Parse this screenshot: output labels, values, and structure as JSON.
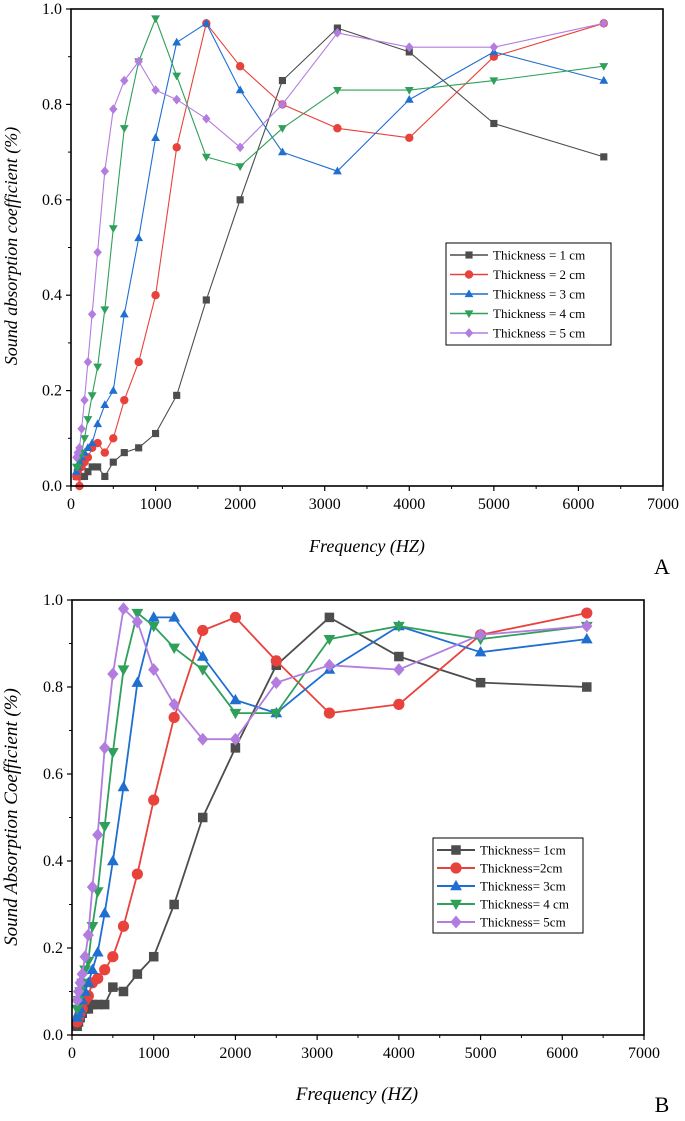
{
  "chart_data": [
    {
      "type": "line",
      "panel_label": "A",
      "xlabel": "Frequency (HZ)",
      "ylabel": "Sound absorption coefficient (%)",
      "xlim": [
        0,
        7000
      ],
      "ylim": [
        0,
        1.0
      ],
      "x_ticks": [
        "0",
        "1000",
        "2000",
        "3000",
        "4000",
        "5000",
        "6000",
        "7000"
      ],
      "y_ticks": [
        "0.0",
        "0.2",
        "0.4",
        "0.6",
        "0.8",
        "1.0"
      ],
      "legend_position": "center-right",
      "x": [
        63,
        80,
        100,
        125,
        160,
        200,
        250,
        315,
        400,
        500,
        630,
        800,
        1000,
        1250,
        1600,
        2000,
        2500,
        3150,
        4000,
        5000,
        6300
      ],
      "series": [
        {
          "name": "Thickness = 1 cm",
          "color": "#4d4d4d",
          "marker": "square",
          "values": [
            0.02,
            0.02,
            0.02,
            0.02,
            0.02,
            0.03,
            0.04,
            0.04,
            0.02,
            0.05,
            0.07,
            0.08,
            0.11,
            0.19,
            0.39,
            0.6,
            0.85,
            0.96,
            0.91,
            0.76,
            0.69
          ]
        },
        {
          "name": "Thickness = 2 cm",
          "color": "#e8423c",
          "marker": "circle",
          "values": [
            0.02,
            0.03,
            0.0,
            0.04,
            0.05,
            0.06,
            0.08,
            0.09,
            0.07,
            0.1,
            0.18,
            0.26,
            0.4,
            0.71,
            0.97,
            0.88,
            0.8,
            0.75,
            0.73,
            0.9,
            0.97
          ]
        },
        {
          "name": "Thickness = 3 cm",
          "color": "#1f6fd1",
          "marker": "triangle-up",
          "values": [
            0.03,
            0.04,
            0.05,
            0.06,
            0.07,
            0.08,
            0.09,
            0.13,
            0.17,
            0.2,
            0.36,
            0.52,
            0.73,
            0.93,
            0.97,
            0.83,
            0.7,
            0.66,
            0.81,
            0.91,
            0.85
          ]
        },
        {
          "name": "Thickness = 4 cm",
          "color": "#2fa05a",
          "marker": "triangle-down",
          "values": [
            0.04,
            0.04,
            0.06,
            0.07,
            0.1,
            0.14,
            0.19,
            0.25,
            0.37,
            0.54,
            0.75,
            0.89,
            0.98,
            0.86,
            0.69,
            0.67,
            0.75,
            0.83,
            0.83,
            0.85,
            0.88
          ]
        },
        {
          "name": "Thickness = 5 cm",
          "color": "#b37de0",
          "marker": "diamond",
          "values": [
            0.06,
            0.07,
            0.08,
            0.12,
            0.18,
            0.26,
            0.36,
            0.49,
            0.66,
            0.79,
            0.85,
            0.89,
            0.83,
            0.81,
            0.77,
            0.71,
            0.8,
            0.95,
            0.92,
            0.92,
            0.97
          ]
        }
      ]
    },
    {
      "type": "line",
      "panel_label": "B",
      "xlabel": "Frequency (HZ)",
      "ylabel": "Sound Absorption Coefficient (%)",
      "xlim": [
        0,
        7000
      ],
      "ylim": [
        0,
        1.0
      ],
      "x_ticks": [
        "0",
        "1000",
        "2000",
        "3000",
        "4000",
        "5000",
        "6000",
        "7000"
      ],
      "y_ticks": [
        "0.0",
        "0.2",
        "0.4",
        "0.6",
        "0.8",
        "1.0"
      ],
      "legend_position": "center-right",
      "x": [
        63,
        80,
        100,
        125,
        160,
        200,
        250,
        315,
        400,
        500,
        630,
        800,
        1000,
        1250,
        1600,
        2000,
        2500,
        3150,
        4000,
        5000,
        6300
      ],
      "series": [
        {
          "name": "Thickness= 1cm",
          "color": "#4d4d4d",
          "marker": "square",
          "values": [
            0.02,
            0.03,
            0.04,
            0.05,
            0.06,
            0.06,
            0.07,
            0.07,
            0.07,
            0.11,
            0.1,
            0.14,
            0.18,
            0.3,
            0.5,
            0.66,
            0.85,
            0.96,
            0.87,
            0.81,
            0.8
          ]
        },
        {
          "name": "Thickness=2cm",
          "color": "#e8423c",
          "marker": "circle",
          "values": [
            0.03,
            0.04,
            0.05,
            0.06,
            0.08,
            0.09,
            0.12,
            0.13,
            0.15,
            0.18,
            0.25,
            0.37,
            0.54,
            0.73,
            0.93,
            0.96,
            0.86,
            0.74,
            0.76,
            0.92,
            0.97
          ]
        },
        {
          "name": "Thickness=  3cm",
          "color": "#1f6fd1",
          "marker": "triangle-up",
          "values": [
            0.04,
            0.05,
            0.06,
            0.08,
            0.1,
            0.12,
            0.15,
            0.19,
            0.28,
            0.4,
            0.57,
            0.81,
            0.96,
            0.96,
            0.87,
            0.77,
            0.74,
            0.84,
            0.94,
            0.88,
            0.91
          ]
        },
        {
          "name": "Thickness= 4 cm",
          "color": "#2fa05a",
          "marker": "triangle-down",
          "values": [
            0.06,
            0.08,
            0.1,
            0.12,
            0.15,
            0.17,
            0.25,
            0.33,
            0.48,
            0.65,
            0.84,
            0.97,
            0.94,
            0.89,
            0.84,
            0.74,
            0.74,
            0.91,
            0.94,
            0.91,
            0.94
          ]
        },
        {
          "name": "Thickness= 5cm",
          "color": "#b37de0",
          "marker": "diamond",
          "values": [
            0.08,
            0.1,
            0.12,
            0.14,
            0.18,
            0.23,
            0.34,
            0.46,
            0.66,
            0.83,
            0.98,
            0.95,
            0.84,
            0.76,
            0.68,
            0.68,
            0.81,
            0.85,
            0.84,
            0.92,
            0.94
          ]
        }
      ]
    }
  ]
}
